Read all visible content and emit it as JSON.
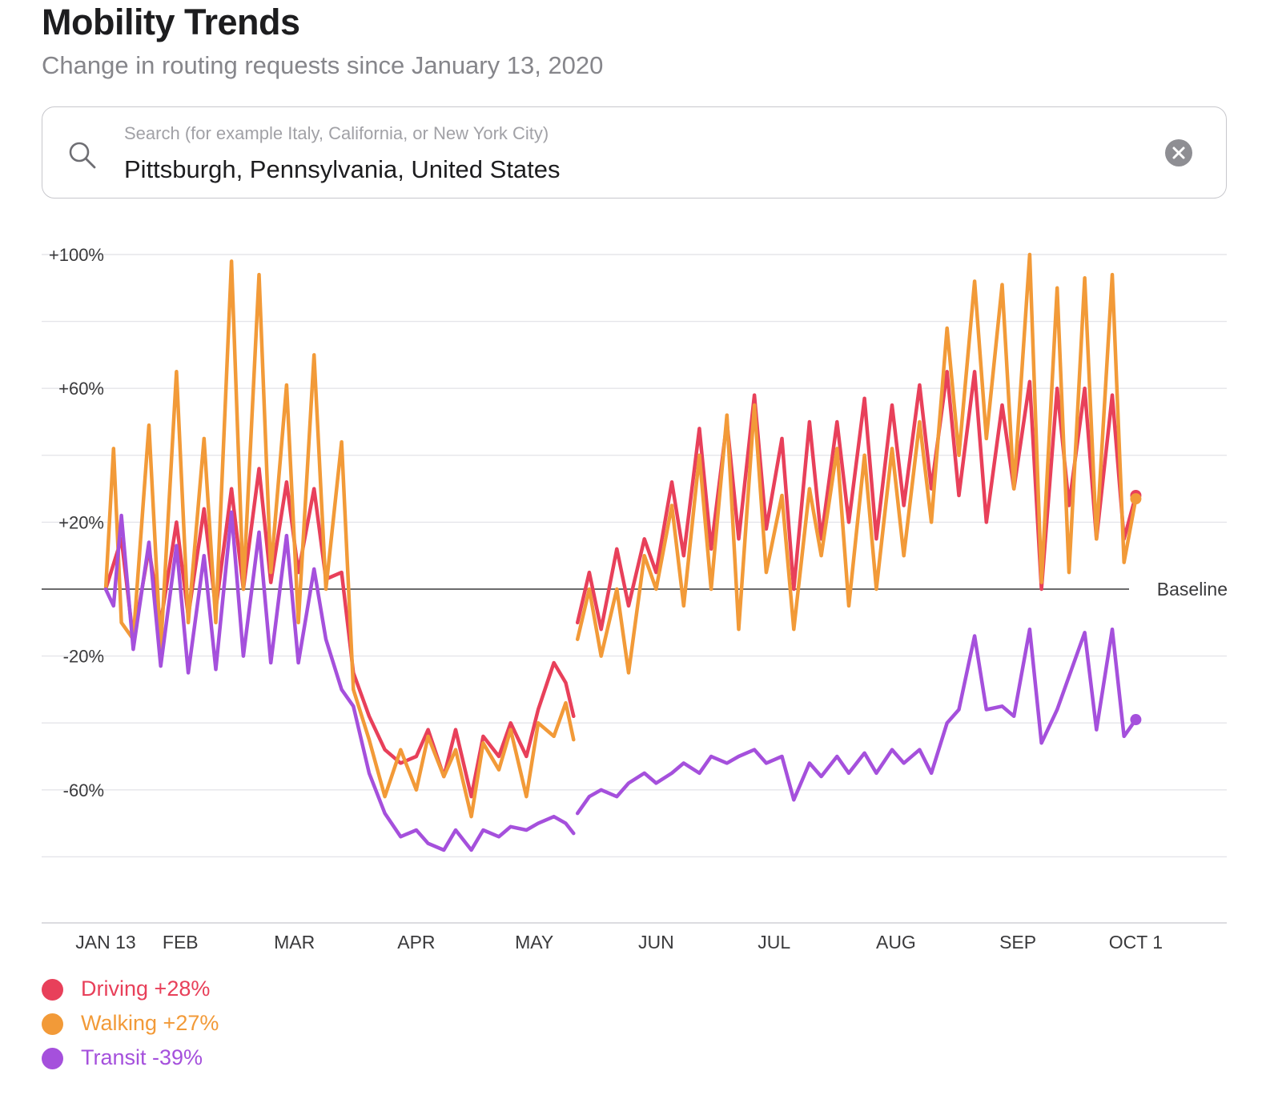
{
  "header": {
    "title": "Mobility Trends",
    "subtitle": "Change in routing requests since January 13, 2020"
  },
  "search": {
    "placeholder": "Search (for example Italy, California, or New York City)",
    "value": "Pittsburgh, Pennsylvania, United States",
    "icon": "search-icon",
    "clear_icon": "clear-icon"
  },
  "legend": {
    "items": [
      {
        "name": "Driving",
        "value": "+28%",
        "color": "#e8405a"
      },
      {
        "name": "Walking",
        "value": "+27%",
        "color": "#f29a38"
      },
      {
        "name": "Transit",
        "value": "-39%",
        "color": "#a550dc"
      }
    ]
  },
  "chart_data": {
    "type": "line",
    "title": "",
    "xlabel": "",
    "ylabel": "",
    "ylim": [
      -80,
      100
    ],
    "ytick_values": [
      100,
      60,
      20,
      -20,
      -60
    ],
    "ytick_labels": [
      "+100%",
      "+60%",
      "+20%",
      "-20%",
      "-60%"
    ],
    "baseline": {
      "value": 0,
      "label": "Baseline"
    },
    "xlim": [
      "2020-01-13",
      "2020-10-31"
    ],
    "xticks": [
      {
        "date": "2020-01-13",
        "label": "JAN 13"
      },
      {
        "date": "2020-02-01",
        "label": "FEB"
      },
      {
        "date": "2020-03-01",
        "label": "MAR"
      },
      {
        "date": "2020-04-01",
        "label": "APR"
      },
      {
        "date": "2020-05-01",
        "label": "MAY"
      },
      {
        "date": "2020-06-01",
        "label": "JUN"
      },
      {
        "date": "2020-07-01",
        "label": "JUL"
      },
      {
        "date": "2020-08-01",
        "label": "AUG"
      },
      {
        "date": "2020-09-01",
        "label": "SEP"
      },
      {
        "date": "2020-10-01",
        "label": "OCT 1"
      }
    ],
    "gap": [
      "2020-05-11",
      "2020-05-12"
    ],
    "grid": true,
    "legend_position": "bottom-left",
    "series": [
      {
        "name": "Driving",
        "color": "#e8405a",
        "end_date": "2020-10-01",
        "end_value": 28,
        "points": [
          [
            "2020-01-13",
            0
          ],
          [
            "2020-01-17",
            15
          ],
          [
            "2020-01-20",
            -15
          ],
          [
            "2020-01-24",
            12
          ],
          [
            "2020-01-27",
            -10
          ],
          [
            "2020-01-31",
            20
          ],
          [
            "2020-02-03",
            -8
          ],
          [
            "2020-02-07",
            24
          ],
          [
            "2020-02-10",
            -6
          ],
          [
            "2020-02-14",
            30
          ],
          [
            "2020-02-17",
            0
          ],
          [
            "2020-02-21",
            36
          ],
          [
            "2020-02-24",
            2
          ],
          [
            "2020-02-28",
            32
          ],
          [
            "2020-03-02",
            5
          ],
          [
            "2020-03-06",
            30
          ],
          [
            "2020-03-09",
            3
          ],
          [
            "2020-03-13",
            5
          ],
          [
            "2020-03-16",
            -25
          ],
          [
            "2020-03-20",
            -38
          ],
          [
            "2020-03-24",
            -48
          ],
          [
            "2020-03-28",
            -52
          ],
          [
            "2020-04-01",
            -50
          ],
          [
            "2020-04-04",
            -42
          ],
          [
            "2020-04-08",
            -56
          ],
          [
            "2020-04-11",
            -42
          ],
          [
            "2020-04-15",
            -62
          ],
          [
            "2020-04-18",
            -44
          ],
          [
            "2020-04-22",
            -50
          ],
          [
            "2020-04-25",
            -40
          ],
          [
            "2020-04-29",
            -50
          ],
          [
            "2020-05-02",
            -36
          ],
          [
            "2020-05-06",
            -22
          ],
          [
            "2020-05-09",
            -28
          ],
          [
            "2020-05-11",
            -38
          ],
          [
            "2020-05-12",
            -10
          ],
          [
            "2020-05-15",
            5
          ],
          [
            "2020-05-18",
            -12
          ],
          [
            "2020-05-22",
            12
          ],
          [
            "2020-05-25",
            -5
          ],
          [
            "2020-05-29",
            15
          ],
          [
            "2020-06-01",
            5
          ],
          [
            "2020-06-05",
            32
          ],
          [
            "2020-06-08",
            10
          ],
          [
            "2020-06-12",
            48
          ],
          [
            "2020-06-15",
            12
          ],
          [
            "2020-06-19",
            50
          ],
          [
            "2020-06-22",
            15
          ],
          [
            "2020-06-26",
            58
          ],
          [
            "2020-06-29",
            18
          ],
          [
            "2020-07-03",
            45
          ],
          [
            "2020-07-06",
            0
          ],
          [
            "2020-07-10",
            50
          ],
          [
            "2020-07-13",
            15
          ],
          [
            "2020-07-17",
            50
          ],
          [
            "2020-07-20",
            20
          ],
          [
            "2020-07-24",
            57
          ],
          [
            "2020-07-27",
            15
          ],
          [
            "2020-07-31",
            55
          ],
          [
            "2020-08-03",
            25
          ],
          [
            "2020-08-07",
            61
          ],
          [
            "2020-08-10",
            30
          ],
          [
            "2020-08-14",
            65
          ],
          [
            "2020-08-17",
            28
          ],
          [
            "2020-08-21",
            65
          ],
          [
            "2020-08-24",
            20
          ],
          [
            "2020-08-28",
            55
          ],
          [
            "2020-08-31",
            30
          ],
          [
            "2020-09-04",
            62
          ],
          [
            "2020-09-07",
            0
          ],
          [
            "2020-09-11",
            60
          ],
          [
            "2020-09-14",
            25
          ],
          [
            "2020-09-18",
            60
          ],
          [
            "2020-09-21",
            15
          ],
          [
            "2020-09-25",
            58
          ],
          [
            "2020-09-28",
            15
          ],
          [
            "2020-10-01",
            28
          ]
        ]
      },
      {
        "name": "Walking",
        "color": "#f29a38",
        "end_date": "2020-10-01",
        "end_value": 27,
        "points": [
          [
            "2020-01-13",
            0
          ],
          [
            "2020-01-15",
            42
          ],
          [
            "2020-01-17",
            -10
          ],
          [
            "2020-01-20",
            -15
          ],
          [
            "2020-01-24",
            49
          ],
          [
            "2020-01-27",
            -18
          ],
          [
            "2020-01-31",
            65
          ],
          [
            "2020-02-03",
            -10
          ],
          [
            "2020-02-07",
            45
          ],
          [
            "2020-02-10",
            -10
          ],
          [
            "2020-02-14",
            98
          ],
          [
            "2020-02-17",
            0
          ],
          [
            "2020-02-21",
            94
          ],
          [
            "2020-02-24",
            5
          ],
          [
            "2020-02-28",
            61
          ],
          [
            "2020-03-02",
            -10
          ],
          [
            "2020-03-06",
            70
          ],
          [
            "2020-03-09",
            0
          ],
          [
            "2020-03-13",
            44
          ],
          [
            "2020-03-16",
            -30
          ],
          [
            "2020-03-20",
            -45
          ],
          [
            "2020-03-24",
            -62
          ],
          [
            "2020-03-28",
            -48
          ],
          [
            "2020-04-01",
            -60
          ],
          [
            "2020-04-04",
            -44
          ],
          [
            "2020-04-08",
            -56
          ],
          [
            "2020-04-11",
            -48
          ],
          [
            "2020-04-15",
            -68
          ],
          [
            "2020-04-18",
            -46
          ],
          [
            "2020-04-22",
            -54
          ],
          [
            "2020-04-25",
            -42
          ],
          [
            "2020-04-29",
            -62
          ],
          [
            "2020-05-02",
            -40
          ],
          [
            "2020-05-06",
            -44
          ],
          [
            "2020-05-09",
            -34
          ],
          [
            "2020-05-11",
            -45
          ],
          [
            "2020-05-12",
            -15
          ],
          [
            "2020-05-15",
            0
          ],
          [
            "2020-05-18",
            -20
          ],
          [
            "2020-05-22",
            0
          ],
          [
            "2020-05-25",
            -25
          ],
          [
            "2020-05-29",
            10
          ],
          [
            "2020-06-01",
            0
          ],
          [
            "2020-06-05",
            25
          ],
          [
            "2020-06-08",
            -5
          ],
          [
            "2020-06-12",
            40
          ],
          [
            "2020-06-15",
            0
          ],
          [
            "2020-06-19",
            52
          ],
          [
            "2020-06-22",
            -12
          ],
          [
            "2020-06-26",
            55
          ],
          [
            "2020-06-29",
            5
          ],
          [
            "2020-07-03",
            28
          ],
          [
            "2020-07-06",
            -12
          ],
          [
            "2020-07-10",
            30
          ],
          [
            "2020-07-13",
            10
          ],
          [
            "2020-07-17",
            42
          ],
          [
            "2020-07-20",
            -5
          ],
          [
            "2020-07-24",
            40
          ],
          [
            "2020-07-27",
            0
          ],
          [
            "2020-07-31",
            42
          ],
          [
            "2020-08-03",
            10
          ],
          [
            "2020-08-07",
            50
          ],
          [
            "2020-08-10",
            20
          ],
          [
            "2020-08-14",
            78
          ],
          [
            "2020-08-17",
            40
          ],
          [
            "2020-08-21",
            92
          ],
          [
            "2020-08-24",
            45
          ],
          [
            "2020-08-28",
            91
          ],
          [
            "2020-08-31",
            30
          ],
          [
            "2020-09-04",
            100
          ],
          [
            "2020-09-07",
            2
          ],
          [
            "2020-09-11",
            90
          ],
          [
            "2020-09-14",
            5
          ],
          [
            "2020-09-18",
            93
          ],
          [
            "2020-09-21",
            15
          ],
          [
            "2020-09-25",
            94
          ],
          [
            "2020-09-28",
            8
          ],
          [
            "2020-10-01",
            27
          ]
        ]
      },
      {
        "name": "Transit",
        "color": "#a550dc",
        "end_date": "2020-10-01",
        "end_value": -39,
        "points": [
          [
            "2020-01-13",
            0
          ],
          [
            "2020-01-15",
            -5
          ],
          [
            "2020-01-17",
            22
          ],
          [
            "2020-01-20",
            -18
          ],
          [
            "2020-01-24",
            14
          ],
          [
            "2020-01-27",
            -23
          ],
          [
            "2020-01-31",
            13
          ],
          [
            "2020-02-03",
            -25
          ],
          [
            "2020-02-07",
            10
          ],
          [
            "2020-02-10",
            -24
          ],
          [
            "2020-02-14",
            23
          ],
          [
            "2020-02-17",
            -20
          ],
          [
            "2020-02-21",
            17
          ],
          [
            "2020-02-24",
            -22
          ],
          [
            "2020-02-28",
            16
          ],
          [
            "2020-03-02",
            -22
          ],
          [
            "2020-03-06",
            6
          ],
          [
            "2020-03-09",
            -15
          ],
          [
            "2020-03-13",
            -30
          ],
          [
            "2020-03-16",
            -35
          ],
          [
            "2020-03-20",
            -55
          ],
          [
            "2020-03-24",
            -67
          ],
          [
            "2020-03-28",
            -74
          ],
          [
            "2020-04-01",
            -72
          ],
          [
            "2020-04-04",
            -76
          ],
          [
            "2020-04-08",
            -78
          ],
          [
            "2020-04-11",
            -72
          ],
          [
            "2020-04-15",
            -78
          ],
          [
            "2020-04-18",
            -72
          ],
          [
            "2020-04-22",
            -74
          ],
          [
            "2020-04-25",
            -71
          ],
          [
            "2020-04-29",
            -72
          ],
          [
            "2020-05-02",
            -70
          ],
          [
            "2020-05-06",
            -68
          ],
          [
            "2020-05-09",
            -70
          ],
          [
            "2020-05-11",
            -73
          ],
          [
            "2020-05-12",
            -67
          ],
          [
            "2020-05-15",
            -62
          ],
          [
            "2020-05-18",
            -60
          ],
          [
            "2020-05-22",
            -62
          ],
          [
            "2020-05-25",
            -58
          ],
          [
            "2020-05-29",
            -55
          ],
          [
            "2020-06-01",
            -58
          ],
          [
            "2020-06-05",
            -55
          ],
          [
            "2020-06-08",
            -52
          ],
          [
            "2020-06-12",
            -55
          ],
          [
            "2020-06-15",
            -50
          ],
          [
            "2020-06-19",
            -52
          ],
          [
            "2020-06-22",
            -50
          ],
          [
            "2020-06-26",
            -48
          ],
          [
            "2020-06-29",
            -52
          ],
          [
            "2020-07-03",
            -50
          ],
          [
            "2020-07-06",
            -63
          ],
          [
            "2020-07-10",
            -52
          ],
          [
            "2020-07-13",
            -56
          ],
          [
            "2020-07-17",
            -50
          ],
          [
            "2020-07-20",
            -55
          ],
          [
            "2020-07-24",
            -49
          ],
          [
            "2020-07-27",
            -55
          ],
          [
            "2020-07-31",
            -48
          ],
          [
            "2020-08-03",
            -52
          ],
          [
            "2020-08-07",
            -48
          ],
          [
            "2020-08-10",
            -55
          ],
          [
            "2020-08-14",
            -40
          ],
          [
            "2020-08-17",
            -36
          ],
          [
            "2020-08-21",
            -14
          ],
          [
            "2020-08-24",
            -36
          ],
          [
            "2020-08-28",
            -35
          ],
          [
            "2020-08-31",
            -38
          ],
          [
            "2020-09-04",
            -12
          ],
          [
            "2020-09-07",
            -46
          ],
          [
            "2020-09-11",
            -36
          ],
          [
            "2020-09-18",
            -13
          ],
          [
            "2020-09-21",
            -42
          ],
          [
            "2020-09-25",
            -12
          ],
          [
            "2020-09-28",
            -44
          ],
          [
            "2020-10-01",
            -39
          ]
        ]
      }
    ]
  }
}
